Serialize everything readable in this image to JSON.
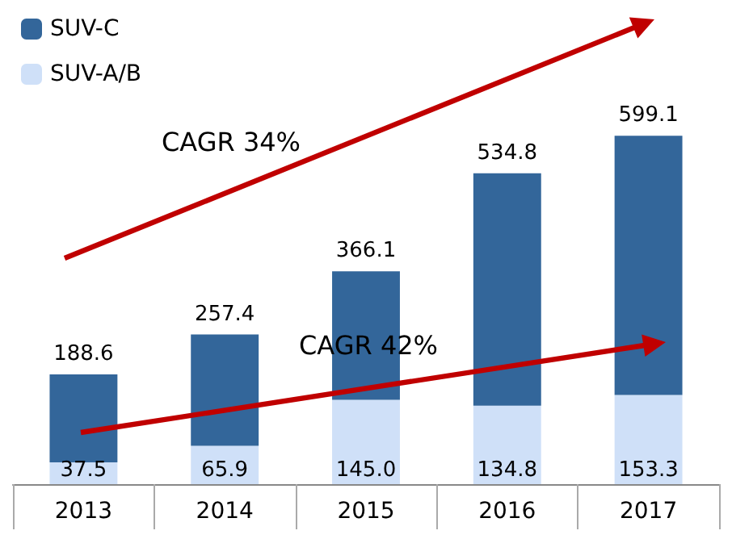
{
  "chart_data": {
    "type": "bar",
    "stacked": true,
    "categories": [
      "2013",
      "2014",
      "2015",
      "2016",
      "2017"
    ],
    "series": [
      {
        "name": "SUV-A/B",
        "color": "#cfe0f8",
        "values": [
          37.5,
          65.9,
          145.0,
          134.8,
          153.3
        ],
        "value_labels": [
          "37.5",
          "65.9",
          "145.0",
          "134.8",
          "153.3"
        ]
      },
      {
        "name": "SUV-C",
        "color": "#33669a",
        "values": [
          151.1,
          191.5,
          221.1,
          400.0,
          445.8
        ]
      }
    ],
    "totals": [
      "188.6",
      "257.4",
      "366.1",
      "534.8",
      "599.1"
    ],
    "annotations": [
      "CAGR 34%",
      "CAGR 42%"
    ],
    "legend": "top left"
  }
}
